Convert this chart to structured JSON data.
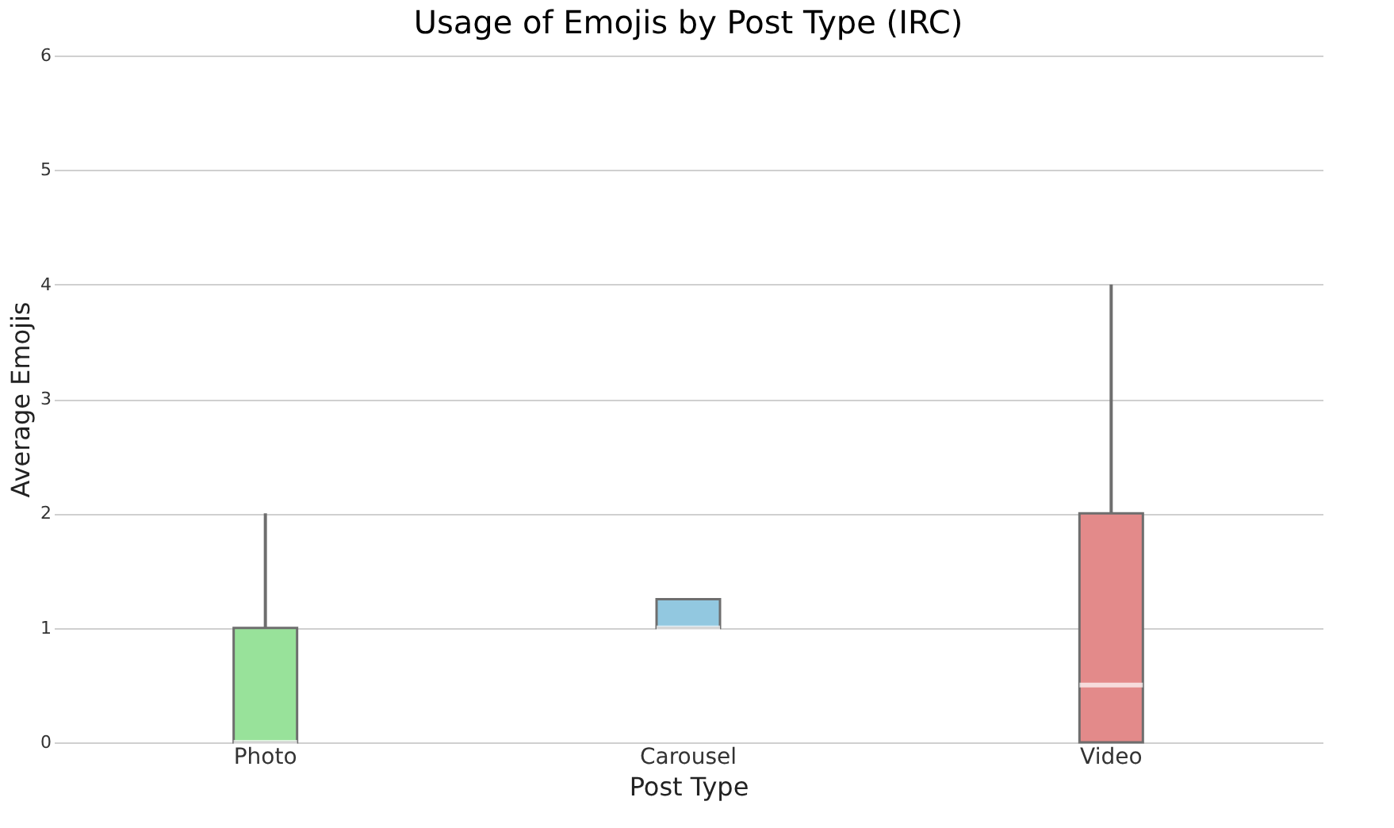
{
  "chart_data": {
    "type": "box",
    "title": "Usage of Emojis by Post Type (IRC)",
    "xlabel": "Post Type",
    "ylabel": "Average Emojis",
    "categories": [
      "Photo",
      "Carousel",
      "Video"
    ],
    "colors": [
      "#98e29a",
      "#92c8e0",
      "#e38a8a"
    ],
    "boxes": [
      {
        "low": 0,
        "q1": 0,
        "median": 0,
        "q3": 1,
        "high": 2
      },
      {
        "low": 1,
        "q1": 1,
        "median": 1,
        "q3": 1.25,
        "high": 1.25
      },
      {
        "low": 0,
        "q1": 0,
        "median": 0.5,
        "q3": 2,
        "high": 4
      }
    ],
    "ylim": [
      0,
      6
    ],
    "yticks": [
      0,
      1,
      2,
      3,
      4,
      5,
      6
    ],
    "grid": "y"
  }
}
